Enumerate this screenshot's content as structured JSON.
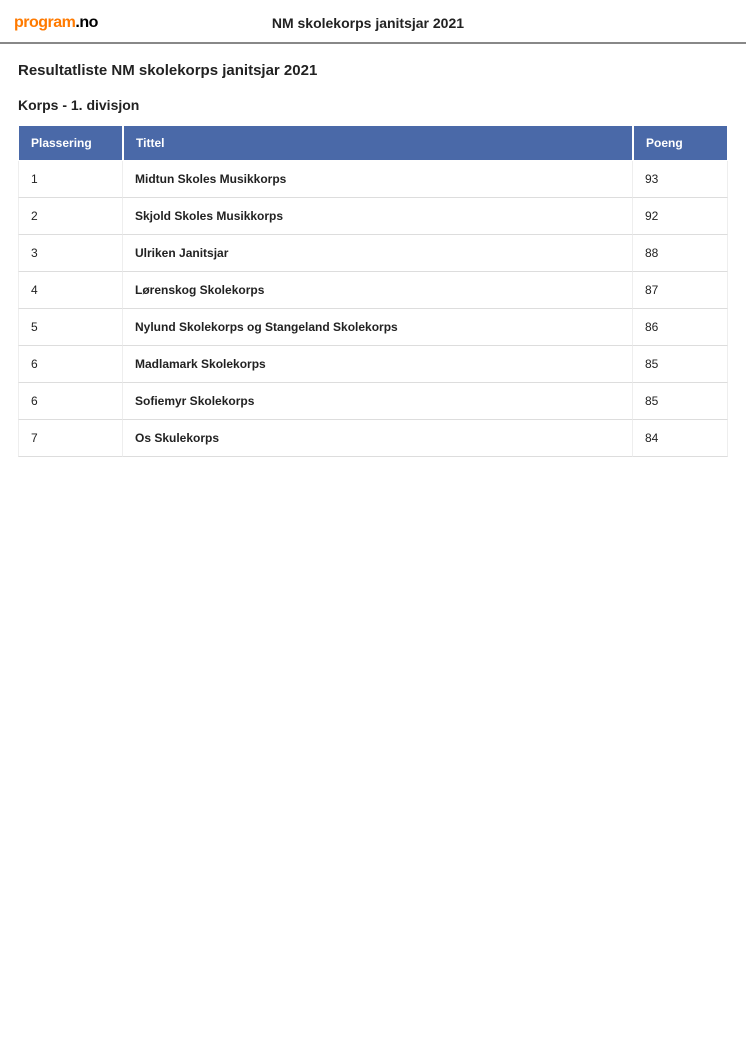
{
  "logo": {
    "part1": "program",
    "part2": ".no"
  },
  "header_title": "NM skolekorps janitsjar 2021",
  "page_title": "Resultatliste NM skolekorps janitsjar 2021",
  "subtitle": "Korps - 1. divisjon",
  "table": {
    "columns": [
      "Plassering",
      "Tittel",
      "Poeng"
    ],
    "header_bg": "#4a69a8",
    "header_fg": "#ffffff",
    "row_border": "#dddddd",
    "rows": [
      {
        "placement": "1",
        "title": "Midtun Skoles Musikkorps",
        "points": "93"
      },
      {
        "placement": "2",
        "title": "Skjold Skoles Musikkorps",
        "points": "92"
      },
      {
        "placement": "3",
        "title": "Ulriken Janitsjar",
        "points": "88"
      },
      {
        "placement": "4",
        "title": "Lørenskog Skolekorps",
        "points": "87"
      },
      {
        "placement": "5",
        "title": "Nylund Skolekorps og Stangeland Skolekorps",
        "points": "86"
      },
      {
        "placement": "6",
        "title": "Madlamark Skolekorps",
        "points": "85"
      },
      {
        "placement": "6",
        "title": "Sofiemyr Skolekorps",
        "points": "85"
      },
      {
        "placement": "7",
        "title": "Os Skulekorps",
        "points": "84"
      }
    ]
  }
}
